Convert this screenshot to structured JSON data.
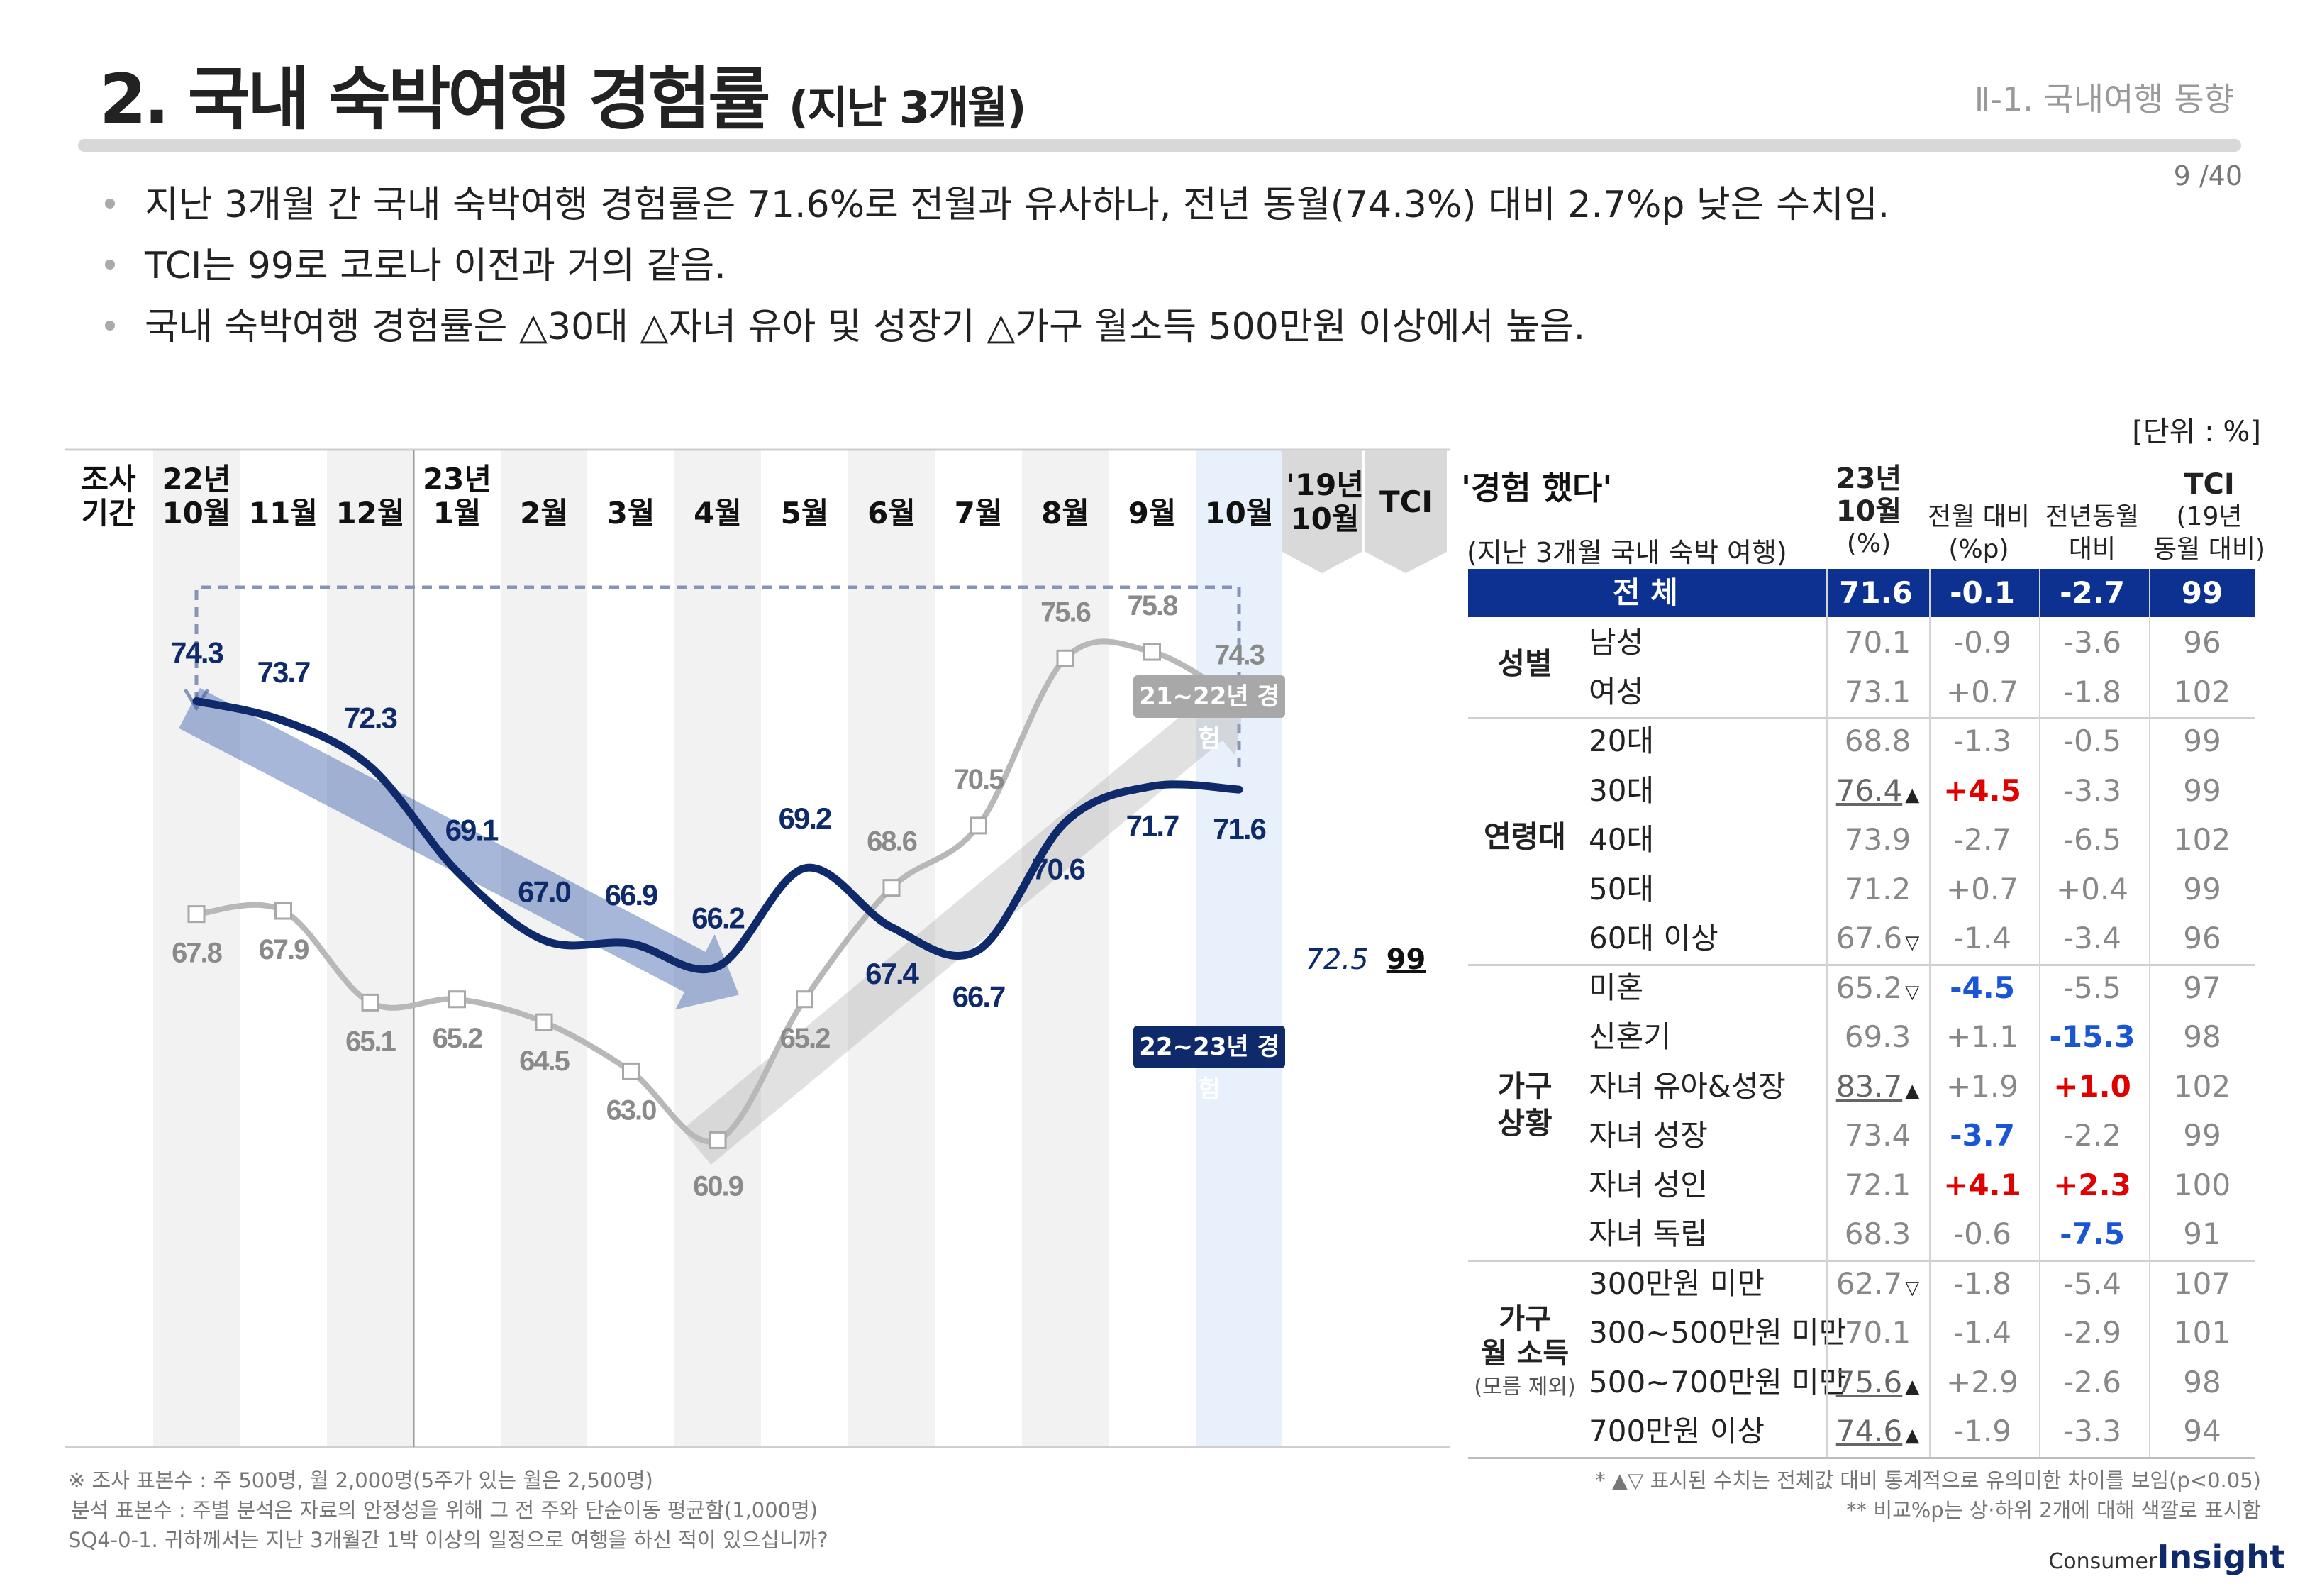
{
  "header": {
    "title": "2. 국내 숙박여행 경험률",
    "title_sub": "(지난 3개월)",
    "section": "Ⅱ-1. 국내여행 동향",
    "page_number": "9 /40"
  },
  "bullets": [
    "지난 3개월 간 국내 숙박여행 경험률은 71.6%로 전월과 유사하나, 전년 동월(74.3%) 대비 2.7%p 낮은 수치임.",
    "TCI는 99로 코로나 이전과 거의 같음.",
    "국내 숙박여행 경험률은 △30대 △자녀 유아 및 성장기 △가구 월소득 500만원 이상에서 높음."
  ],
  "unit": "[단위 : %]",
  "chart_header": {
    "period_label_1": "조사",
    "period_label_2": "기간",
    "months": [
      {
        "top": "22년",
        "bottom": "10월"
      },
      {
        "top": "",
        "bottom": "11월"
      },
      {
        "top": "",
        "bottom": "12월"
      },
      {
        "top": "23년",
        "bottom": "1월"
      },
      {
        "top": "",
        "bottom": "2월"
      },
      {
        "top": "",
        "bottom": "3월"
      },
      {
        "top": "",
        "bottom": "4월"
      },
      {
        "top": "",
        "bottom": "5월"
      },
      {
        "top": "",
        "bottom": "6월"
      },
      {
        "top": "",
        "bottom": "7월"
      },
      {
        "top": "",
        "bottom": "8월"
      },
      {
        "top": "",
        "bottom": "9월"
      },
      {
        "top": "",
        "bottom": "10월"
      }
    ],
    "ref_col_top": "'19년",
    "ref_col_bottom": "10월",
    "tci_col": "TCI",
    "ref_value": "72.5",
    "tci_value": "99"
  },
  "chart_data": {
    "type": "line",
    "categories": [
      "22년 10월",
      "11월",
      "12월",
      "23년 1월",
      "2월",
      "3월",
      "4월",
      "5월",
      "6월",
      "7월",
      "8월",
      "9월",
      "10월"
    ],
    "series": [
      {
        "name": "21~22년 경험",
        "color": "#b8b8b8",
        "values": [
          67.8,
          67.9,
          65.1,
          65.2,
          64.5,
          63.0,
          60.9,
          65.2,
          68.6,
          70.5,
          75.6,
          75.8,
          74.3
        ]
      },
      {
        "name": "22~23년 경험",
        "color": "#0f2a6b",
        "values": [
          74.3,
          73.7,
          72.3,
          69.1,
          67.0,
          66.9,
          66.2,
          69.2,
          67.4,
          66.7,
          70.6,
          71.7,
          71.6
        ]
      }
    ],
    "labels_grey": [
      "67.8",
      "67.9",
      "65.1",
      "65.2",
      "64.5",
      "63.0",
      "60.9",
      "65.2",
      "68.6",
      "70.5",
      "75.6",
      "75.8",
      "74.3"
    ],
    "labels_navy": [
      "74.3",
      "73.7",
      "72.3",
      "69.1",
      "67.0",
      "66.9",
      "66.2",
      "69.2",
      "67.4",
      "66.7",
      "70.6",
      "71.7",
      "71.6"
    ],
    "ylim": [
      55,
      80
    ]
  },
  "table": {
    "title": "'경험 했다'",
    "subtitle": "(지난 3개월 국내 숙박 여행)",
    "col_value_1": "23년",
    "col_value_2": "10월",
    "col_value_3": "(%)",
    "col_mom_1": "전월 대비",
    "col_mom_2": "(%p)",
    "col_yoy_1": "전년동월",
    "col_yoy_2": "대비 (%p)",
    "col_tci_1": "TCI",
    "col_tci_2": "(19년",
    "col_tci_3": "동월 대비)",
    "total": {
      "label": "전 체",
      "value": "71.6",
      "mom": "-0.1",
      "yoy": "-2.7",
      "tci": "99"
    },
    "groups": [
      {
        "name_1": "성별",
        "name_2": "",
        "name_3": ""
      },
      {
        "name_1": "연령대",
        "name_2": "",
        "name_3": ""
      },
      {
        "name_1": "가구",
        "name_2": "상황",
        "name_3": ""
      },
      {
        "name_1": "가구",
        "name_2": "월 소득",
        "name_3": "(모름 제외)"
      }
    ],
    "rows": [
      {
        "label": "남성",
        "value": "70.1",
        "mark": "",
        "mom": "-0.9",
        "yoy": "-3.6",
        "tci": "96"
      },
      {
        "label": "여성",
        "value": "73.1",
        "mark": "",
        "mom": "+0.7",
        "yoy": "-1.8",
        "tci": "102"
      },
      {
        "label": "20대",
        "value": "68.8",
        "mark": "",
        "mom": "-1.3",
        "yoy": "-0.5",
        "tci": "99"
      },
      {
        "label": "30대",
        "value": "76.4",
        "mark": "▲",
        "mom": "+4.5",
        "yoy": "-3.3",
        "tci": "99"
      },
      {
        "label": "40대",
        "value": "73.9",
        "mark": "",
        "mom": "-2.7",
        "yoy": "-6.5",
        "tci": "102"
      },
      {
        "label": "50대",
        "value": "71.2",
        "mark": "",
        "mom": "+0.7",
        "yoy": "+0.4",
        "tci": "99"
      },
      {
        "label": "60대 이상",
        "value": "67.6",
        "mark": "▽",
        "mom": "-1.4",
        "yoy": "-3.4",
        "tci": "96"
      },
      {
        "label": "미혼",
        "value": "65.2",
        "mark": "▽",
        "mom": "-4.5",
        "yoy": "-5.5",
        "tci": "97"
      },
      {
        "label": "신혼기",
        "value": "69.3",
        "mark": "",
        "mom": "+1.1",
        "yoy": "-15.3",
        "tci": "98"
      },
      {
        "label": "자녀 유아&성장",
        "value": "83.7",
        "mark": "▲",
        "mom": "+1.9",
        "yoy": "+1.0",
        "tci": "102"
      },
      {
        "label": "자녀 성장",
        "value": "73.4",
        "mark": "",
        "mom": "-3.7",
        "yoy": "-2.2",
        "tci": "99"
      },
      {
        "label": "자녀 성인",
        "value": "72.1",
        "mark": "",
        "mom": "+4.1",
        "yoy": "+2.3",
        "tci": "100"
      },
      {
        "label": "자녀 독립",
        "value": "68.3",
        "mark": "",
        "mom": "-0.6",
        "yoy": "-7.5",
        "tci": "91"
      },
      {
        "label": "300만원 미만",
        "value": "62.7",
        "mark": "▽",
        "mom": "-1.8",
        "yoy": "-5.4",
        "tci": "107"
      },
      {
        "label": "300~500만원 미만",
        "value": "70.1",
        "mark": "",
        "mom": "-1.4",
        "yoy": "-2.9",
        "tci": "101"
      },
      {
        "label": "500~700만원 미만",
        "value": "75.6",
        "mark": "▲",
        "mom": "+2.9",
        "yoy": "-2.6",
        "tci": "98"
      },
      {
        "label": "700만원 이상",
        "value": "74.6",
        "mark": "▲",
        "mom": "-1.9",
        "yoy": "-3.3",
        "tci": "94"
      }
    ]
  },
  "colors": {
    "navy": "#0f2a6b",
    "grey_line": "#b8b8b8",
    "header_bg": "#0d3190",
    "highlight_col": "#e8f0fb",
    "red": "#e00000",
    "blue": "#1a55d6"
  },
  "footnotes": {
    "left_1": "※ 조사 표본수 : 주 500명, 월 2,000명(5주가 있는 월은 2,500명)",
    "left_2": "분석 표본수 : 주별 분석은 자료의 안정성을 위해 그 전 주와 단순이동 평균함(1,000명)",
    "left_3": "SQ4-0-1. 귀하께서는 지난 3개월간 1박 이상의 일정으로 여행을 하신 적이 있으십니까?",
    "right_1": "* ▲▽ 표시된 수치는 전체값 대비 통계적으로 유의미한 차이를 보임(p<0.05)",
    "right_2": "** 비교%p는 상·하위 2개에 대해 색깔로 표시함"
  },
  "logo": {
    "text_1": "Consumer",
    "text_2": "Insight"
  }
}
